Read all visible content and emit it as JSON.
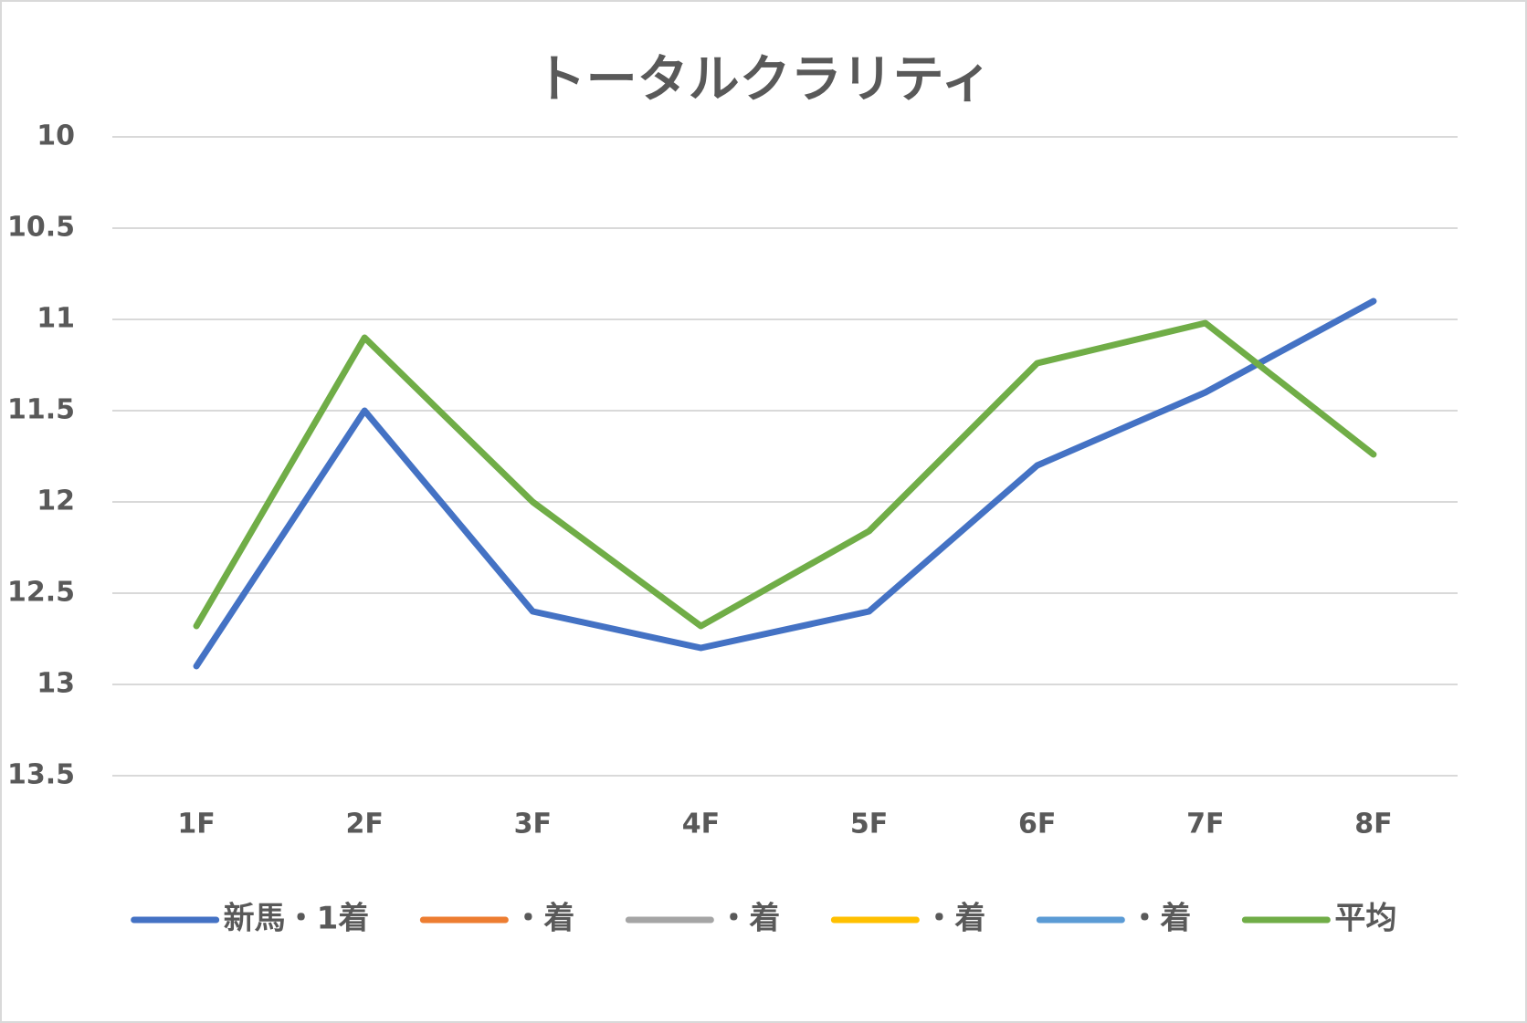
{
  "chart_data": {
    "type": "line",
    "title": "トータルクラリティ",
    "categories": [
      "1F",
      "2F",
      "3F",
      "4F",
      "5F",
      "6F",
      "7F",
      "8F"
    ],
    "series": [
      {
        "name": "新馬・1着",
        "color": "#4472c4",
        "values": [
          12.9,
          11.5,
          12.6,
          12.8,
          12.6,
          11.8,
          11.4,
          10.9
        ]
      },
      {
        "name": "・着",
        "color": "#ed7d31",
        "values": [
          null,
          null,
          null,
          null,
          null,
          null,
          null,
          null
        ]
      },
      {
        "name": "・着",
        "color": "#a5a5a5",
        "values": [
          null,
          null,
          null,
          null,
          null,
          null,
          null,
          null
        ]
      },
      {
        "name": "・着",
        "color": "#ffc000",
        "values": [
          null,
          null,
          null,
          null,
          null,
          null,
          null,
          null
        ]
      },
      {
        "name": "・着",
        "color": "#5b9bd5",
        "values": [
          null,
          null,
          null,
          null,
          null,
          null,
          null,
          null
        ]
      },
      {
        "name": "平均",
        "color": "#70ad47",
        "values": [
          12.68,
          11.1,
          12.0,
          12.68,
          12.16,
          11.24,
          11.02,
          11.74
        ]
      }
    ],
    "ylim": [
      10,
      13.5
    ],
    "yticks": [
      10,
      10.5,
      11,
      11.5,
      12,
      12.5,
      13,
      13.5
    ],
    "y_reversed": true,
    "grid": true,
    "legend": "bottom"
  }
}
